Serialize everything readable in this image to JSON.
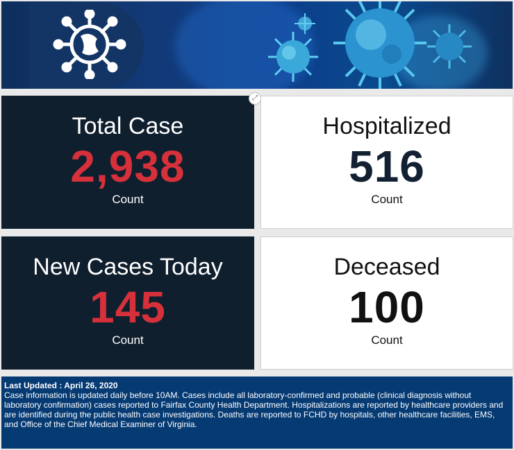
{
  "banner": {
    "logo_icon": "virus-icon",
    "image": "coronavirus-background"
  },
  "cards": {
    "total": {
      "title": "Total Case",
      "value": "2,938",
      "unit": "Count"
    },
    "hospitalized": {
      "title": "Hospitalized",
      "value": "516",
      "unit": "Count"
    },
    "new_today": {
      "title": "New Cases Today",
      "value": "145",
      "unit": "Count"
    },
    "deceased": {
      "title": "Deceased",
      "value": "100",
      "unit": "Count"
    }
  },
  "footer": {
    "updated": "Last Updated : April 26, 2020",
    "body": "Case information is updated daily before 10AM. Cases include all laboratory-confirmed and probable (clinical diagnosis without laboratory confirmation) cases reported to Fairfax County Health Department. Hospitalizations are reported by healthcare providers and are identified during the public health case investigations.  Deaths are reported to FCHD by hospitals, other healthcare facilities, EMS, and Office of the Chief Medical Examiner of Virginia."
  },
  "colors": {
    "dark_card": "#0f1f2e",
    "accent_red": "#d6313b",
    "footer_bg": "#053a73"
  }
}
